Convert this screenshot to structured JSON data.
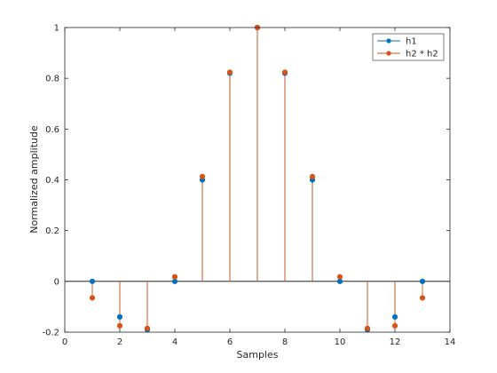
{
  "chart_data": {
    "type": "stem",
    "xlabel": "Samples",
    "ylabel": "Normalized amplitude",
    "xlim": [
      0,
      14
    ],
    "ylim": [
      -0.2,
      1
    ],
    "xticks": [
      0,
      2,
      4,
      6,
      8,
      10,
      12,
      14
    ],
    "yticks": [
      -0.2,
      0,
      0.2,
      0.4,
      0.6,
      0.8,
      1
    ],
    "grid": false,
    "legend_position": "top-right",
    "baseline": 0,
    "series": [
      {
        "name": "h1",
        "color": "#0072BD",
        "x": [
          1,
          2,
          3,
          4,
          5,
          6,
          7,
          8,
          9,
          10,
          11,
          12,
          13
        ],
        "values": [
          0,
          -0.14,
          -0.19,
          0,
          0.4,
          0.82,
          1.0,
          0.82,
          0.4,
          0,
          -0.19,
          -0.14,
          0
        ]
      },
      {
        "name": "h2 * h2",
        "color": "#D95319",
        "x": [
          1,
          2,
          3,
          4,
          5,
          6,
          7,
          8,
          9,
          10,
          11,
          12,
          13
        ],
        "values": [
          -0.065,
          -0.175,
          -0.185,
          0.018,
          0.413,
          0.824,
          1.0,
          0.824,
          0.413,
          0.018,
          -0.185,
          -0.175,
          -0.065
        ]
      }
    ]
  }
}
